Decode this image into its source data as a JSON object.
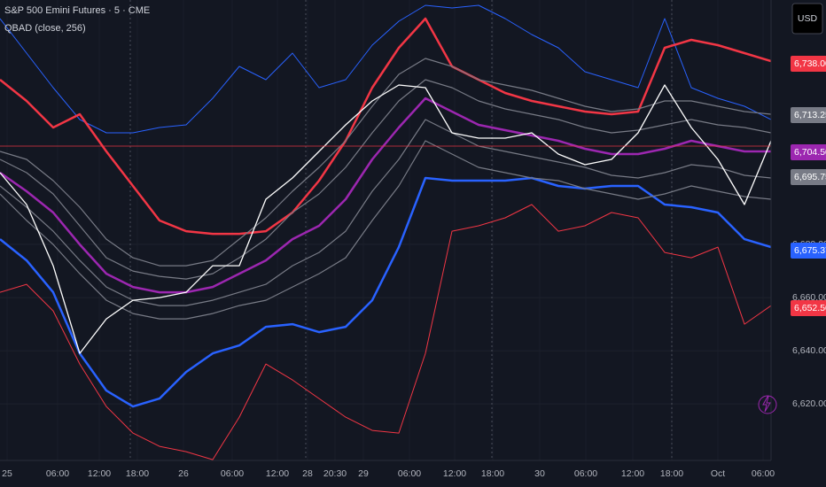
{
  "chart_data": {
    "type": "line",
    "title": "S&P 500 Emini Futures · 5 · CME",
    "subtitle": "QBAD (close, 256)",
    "currency": "USD",
    "x": [
      0,
      3,
      6,
      9,
      12,
      15,
      18,
      21,
      24,
      27,
      30,
      33,
      36,
      39,
      42,
      45,
      48,
      51,
      54,
      57,
      60,
      63,
      66,
      69,
      72,
      75,
      78,
      81,
      84,
      87
    ],
    "xlim": [
      0,
      87
    ],
    "xticks": [
      {
        "value": 0.8,
        "label": "25"
      },
      {
        "value": 6.5,
        "label": "06:00"
      },
      {
        "value": 11.2,
        "label": "12:00"
      },
      {
        "value": 15.5,
        "label": "18:00"
      },
      {
        "value": 20.7,
        "label": "26"
      },
      {
        "value": 26.2,
        "label": "06:00"
      },
      {
        "value": 31.3,
        "label": "12:00"
      },
      {
        "value": 34.7,
        "label": "28"
      },
      {
        "value": 37.8,
        "label": "20:30"
      },
      {
        "value": 41,
        "label": "29"
      },
      {
        "value": 46.2,
        "label": "06:00"
      },
      {
        "value": 51.3,
        "label": "12:00"
      },
      {
        "value": 55.6,
        "label": "18:00"
      },
      {
        "value": 60.9,
        "label": "30"
      },
      {
        "value": 66.1,
        "label": "06:00"
      },
      {
        "value": 71.4,
        "label": "12:00"
      },
      {
        "value": 75.8,
        "label": "18:00"
      },
      {
        "value": 81,
        "label": "Oct"
      },
      {
        "value": 86.1,
        "label": "06:00"
      }
    ],
    "ylim": [
      6598.7,
      6772
    ],
    "yticks": [
      {
        "value": 6620,
        "label": "6,620.00"
      },
      {
        "value": 6640,
        "label": "6,640.00"
      },
      {
        "value": 6660,
        "label": "6,660.00"
      },
      {
        "value": 6680,
        "label": "6,680.00"
      }
    ],
    "grid": true,
    "series": [
      {
        "color": "#2962ff",
        "line_width": 1,
        "values": [
          6765,
          6752,
          6739,
          6727,
          6722,
          6722,
          6724,
          6725,
          6735,
          6747,
          6742,
          6752,
          6739,
          6742,
          6755,
          6764,
          6770,
          6769,
          6770,
          6765,
          6759,
          6754,
          6745,
          6742,
          6739,
          6765,
          6739,
          6735,
          6732,
          6727
        ]
      },
      {
        "color": "#f23645",
        "line_width": 1,
        "values": [
          6662,
          6665,
          6655,
          6635,
          6619,
          6609,
          6604,
          6602,
          6599,
          6615,
          6635,
          6629,
          6622,
          6615,
          6610,
          6609,
          6639,
          6685,
          6687,
          6690,
          6695,
          6685,
          6687,
          6692,
          6690,
          6677,
          6675,
          6679,
          6650,
          6657
        ]
      },
      {
        "color": "#f23645",
        "line_width": 2.5,
        "values": [
          6742,
          6734,
          6724,
          6729,
          6715,
          6702,
          6689,
          6685,
          6684,
          6684,
          6685,
          6692,
          6704,
          6719,
          6739,
          6754,
          6765,
          6747,
          6742,
          6737,
          6734,
          6732,
          6730,
          6729,
          6730,
          6754,
          6757,
          6755,
          6752,
          6749
        ]
      },
      {
        "color": "#2962ff",
        "line_width": 2.5,
        "values": [
          6682,
          6674,
          6662,
          6639,
          6625,
          6619,
          6622,
          6632,
          6639,
          6642,
          6649,
          6650,
          6647,
          6649,
          6659,
          6679,
          6705,
          6704,
          6704,
          6704,
          6705,
          6702,
          6701,
          6702,
          6702,
          6695,
          6694,
          6692,
          6682,
          6679
        ]
      },
      {
        "color": "#787b86",
        "line_width": 1.2,
        "values": [
          6715,
          6712,
          6704,
          6694,
          6682,
          6675,
          6672,
          6672,
          6674,
          6682,
          6690,
          6700,
          6709,
          6719,
          6732,
          6744,
          6750,
          6747,
          6742,
          6740,
          6738,
          6735,
          6732,
          6730,
          6731,
          6734,
          6734,
          6732,
          6730,
          6729
        ]
      },
      {
        "color": "#787b86",
        "line_width": 1.2,
        "values": [
          6712,
          6707,
          6699,
          6687,
          6675,
          6670,
          6668,
          6667,
          6669,
          6675,
          6682,
          6692,
          6699,
          6709,
          6722,
          6734,
          6742,
          6739,
          6734,
          6731,
          6729,
          6727,
          6724,
          6722,
          6723,
          6725,
          6727,
          6725,
          6724,
          6722
        ]
      },
      {
        "color": "#787b86",
        "line_width": 1.2,
        "values": [
          6702,
          6694,
          6685,
          6674,
          6664,
          6659,
          6657,
          6657,
          6659,
          6662,
          6665,
          6672,
          6677,
          6685,
          6700,
          6712,
          6727,
          6722,
          6717,
          6715,
          6713,
          6711,
          6709,
          6706,
          6705,
          6707,
          6710,
          6709,
          6706,
          6705
        ]
      },
      {
        "color": "#787b86",
        "line_width": 1.2,
        "values": [
          6699,
          6689,
          6680,
          6669,
          6659,
          6654,
          6652,
          6652,
          6654,
          6657,
          6659,
          6664,
          6669,
          6675,
          6689,
          6702,
          6719,
          6714,
          6709,
          6707,
          6705,
          6704,
          6701,
          6699,
          6697,
          6699,
          6702,
          6700,
          6698,
          6697
        ]
      },
      {
        "color": "#9c27b0",
        "line_width": 2.5,
        "values": [
          6707,
          6700,
          6692,
          6680,
          6669,
          6664,
          6662,
          6662,
          6664,
          6669,
          6674,
          6682,
          6687,
          6697,
          6712,
          6724,
          6735,
          6730,
          6725,
          6723,
          6721,
          6719,
          6716,
          6714,
          6714,
          6716,
          6719,
          6717,
          6715,
          6715
        ]
      },
      {
        "color": "#ffffff",
        "line_width": 1.3,
        "values": [
          6707,
          6695,
          6672,
          6639,
          6652,
          6659,
          6660,
          6662,
          6672,
          6672,
          6697,
          6705,
          6715,
          6725,
          6734,
          6740,
          6739,
          6722,
          6720,
          6720,
          6722,
          6714,
          6710,
          6712,
          6722,
          6740,
          6724,
          6712,
          6695,
          6719
        ]
      }
    ],
    "price_labels": [
      {
        "label": "6,738.0000",
        "color": "#f23645"
      },
      {
        "label": "6,713.2500",
        "color": "#787b86"
      },
      {
        "label": "6,704.5000",
        "color": "#9c27b0"
      },
      {
        "label": "6,695.7500",
        "color": "#787b86"
      },
      {
        "label": "6,675.3750",
        "color": "#2962ff"
      },
      {
        "label": "6,652.5000",
        "color": "#f23645"
      }
    ]
  }
}
